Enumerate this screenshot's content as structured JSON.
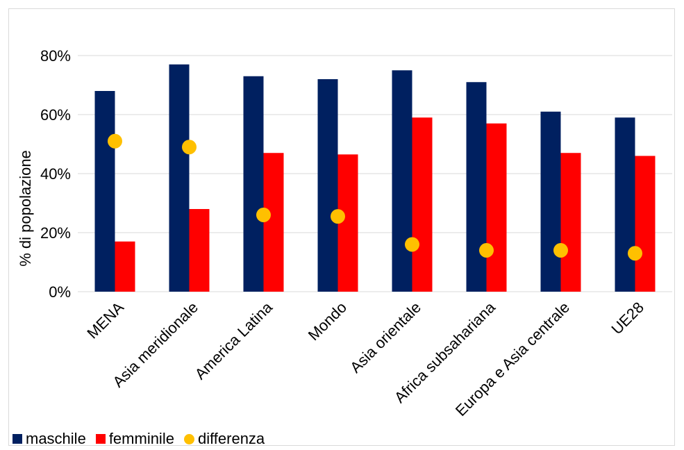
{
  "chart_data": {
    "type": "bar",
    "categories": [
      "MENA",
      "Asia meridionale",
      "America Latina",
      "Mondo",
      "Asia orientale",
      "Africa subsahariana",
      "Europa e Asia centrale",
      "UE28"
    ],
    "series": [
      {
        "name": "maschile",
        "kind": "bar",
        "color": "#002060",
        "values": [
          68,
          77,
          73,
          72,
          75,
          71,
          61,
          59
        ]
      },
      {
        "name": "femminile",
        "kind": "bar",
        "color": "#FF0000",
        "values": [
          17,
          28,
          47,
          46.5,
          59,
          57,
          47,
          46
        ]
      },
      {
        "name": "differenza",
        "kind": "marker",
        "color": "#FFC000",
        "values": [
          51,
          49,
          26,
          25.5,
          16,
          14,
          14,
          13
        ]
      }
    ],
    "ylabel": "% di popolazione",
    "xlabel": "",
    "ylim": [
      0,
      80
    ],
    "yticks": [
      "0%",
      "20%",
      "40%",
      "60%",
      "80%"
    ],
    "grid": true,
    "legend_position": "bottom-left"
  }
}
